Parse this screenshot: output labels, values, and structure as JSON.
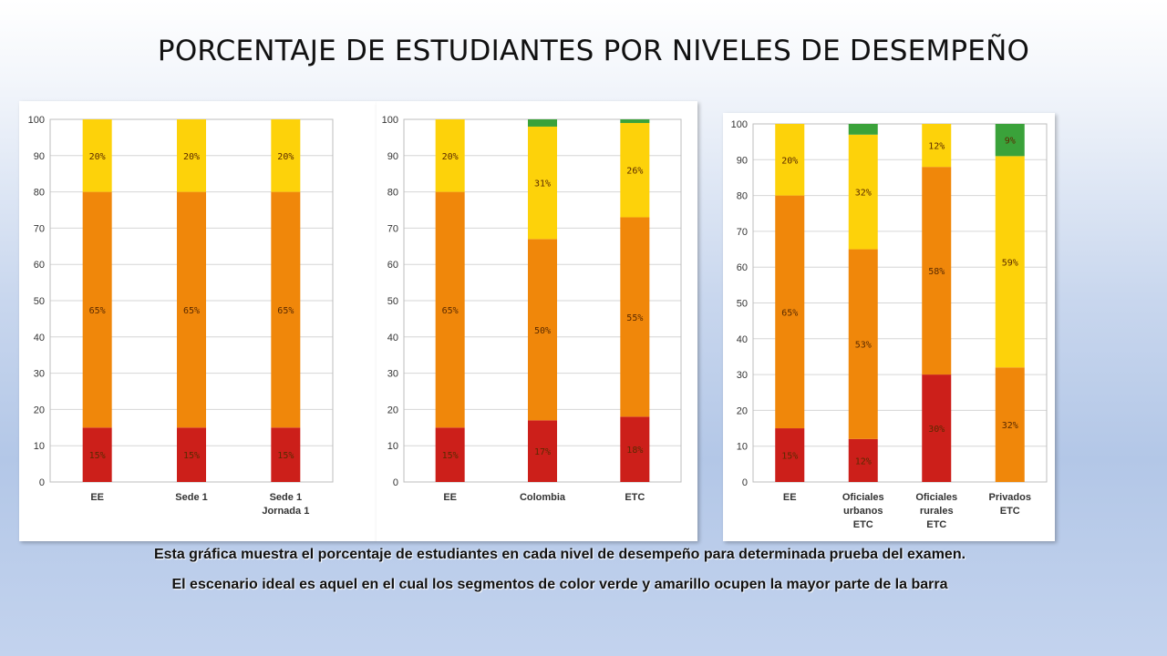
{
  "title": "PORCENTAJE DE ESTUDIANTES POR NIVELES DE DESEMPEÑO",
  "captions": {
    "line1": "Esta gráfica muestra el porcentaje de estudiantes en cada nivel de desempeño para determinada prueba del examen.",
    "line2": "El escenario ideal es aquel en el cual los segmentos de color verde y amarillo ocupen la mayor parte de la barra"
  },
  "colors": {
    "red": "#cc1f1a",
    "orange": "#f0870a",
    "yellow": "#fdd20a",
    "green": "#3aa23a"
  },
  "chart_data": [
    {
      "type": "bar",
      "stacked": true,
      "ylim": [
        0,
        100
      ],
      "yticks": [
        0,
        10,
        20,
        30,
        40,
        50,
        60,
        70,
        80,
        90,
        100
      ],
      "categories": [
        [
          "EE"
        ],
        [
          "Sede 1"
        ],
        [
          "Sede 1",
          "Jornada 1"
        ]
      ],
      "series": [
        {
          "color": "red",
          "values": [
            15,
            15,
            15
          ],
          "labels": [
            "15%",
            "15%",
            "15%"
          ]
        },
        {
          "color": "orange",
          "values": [
            65,
            65,
            65
          ],
          "labels": [
            "65%",
            "65%",
            "65%"
          ]
        },
        {
          "color": "yellow",
          "values": [
            20,
            20,
            20
          ],
          "labels": [
            "20%",
            "20%",
            "20%"
          ]
        },
        {
          "color": "green",
          "values": [
            0,
            0,
            0
          ],
          "labels": [
            "",
            "",
            ""
          ]
        }
      ]
    },
    {
      "type": "bar",
      "stacked": true,
      "ylim": [
        0,
        100
      ],
      "yticks": [
        0,
        10,
        20,
        30,
        40,
        50,
        60,
        70,
        80,
        90,
        100
      ],
      "categories": [
        [
          "EE"
        ],
        [
          "Colombia"
        ],
        [
          "ETC"
        ]
      ],
      "series": [
        {
          "color": "red",
          "values": [
            15,
            17,
            18
          ],
          "labels": [
            "15%",
            "17%",
            "18%"
          ]
        },
        {
          "color": "orange",
          "values": [
            65,
            50,
            55
          ],
          "labels": [
            "65%",
            "50%",
            "55%"
          ]
        },
        {
          "color": "yellow",
          "values": [
            20,
            31,
            26
          ],
          "labels": [
            "20%",
            "31%",
            "26%"
          ]
        },
        {
          "color": "green",
          "values": [
            0,
            2,
            1
          ],
          "labels": [
            "",
            "",
            ""
          ]
        }
      ]
    },
    {
      "type": "bar",
      "stacked": true,
      "ylim": [
        0,
        100
      ],
      "yticks": [
        0,
        10,
        20,
        30,
        40,
        50,
        60,
        70,
        80,
        90,
        100
      ],
      "categories": [
        [
          "EE"
        ],
        [
          "Oficiales",
          "urbanos",
          "ETC"
        ],
        [
          "Oficiales",
          "rurales",
          "ETC"
        ],
        [
          "Privados",
          "ETC"
        ]
      ],
      "series": [
        {
          "color": "red",
          "values": [
            15,
            12,
            30,
            0
          ],
          "labels": [
            "15%",
            "12%",
            "30%",
            ""
          ]
        },
        {
          "color": "orange",
          "values": [
            65,
            53,
            58,
            32
          ],
          "labels": [
            "65%",
            "53%",
            "58%",
            "32%"
          ]
        },
        {
          "color": "yellow",
          "values": [
            20,
            32,
            12,
            59
          ],
          "labels": [
            "20%",
            "32%",
            "12%",
            "59%"
          ]
        },
        {
          "color": "green",
          "values": [
            0,
            3,
            0,
            9
          ],
          "labels": [
            "",
            "",
            "",
            "9%"
          ]
        }
      ]
    }
  ]
}
